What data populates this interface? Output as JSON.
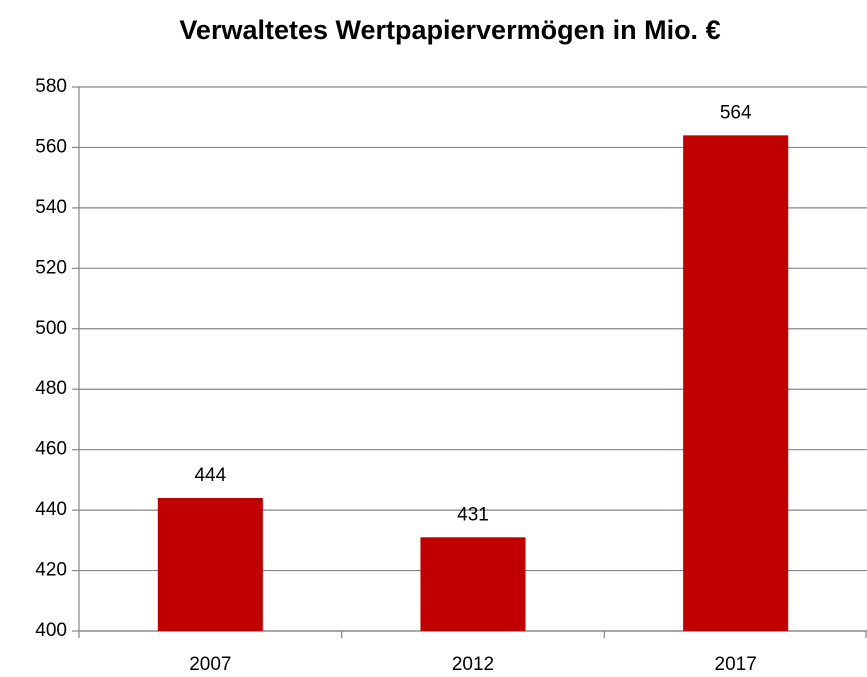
{
  "chart_data": {
    "type": "bar",
    "title": "Verwaltetes Wertpapiervermögen in Mio. €",
    "categories": [
      "2007",
      "2012",
      "2017"
    ],
    "values": [
      444,
      431,
      564
    ],
    "color": "#c00000",
    "ylim": [
      400,
      580
    ],
    "yticks": [
      400,
      420,
      440,
      460,
      480,
      500,
      520,
      540,
      560,
      580
    ],
    "grid": true,
    "data_labels": true
  }
}
